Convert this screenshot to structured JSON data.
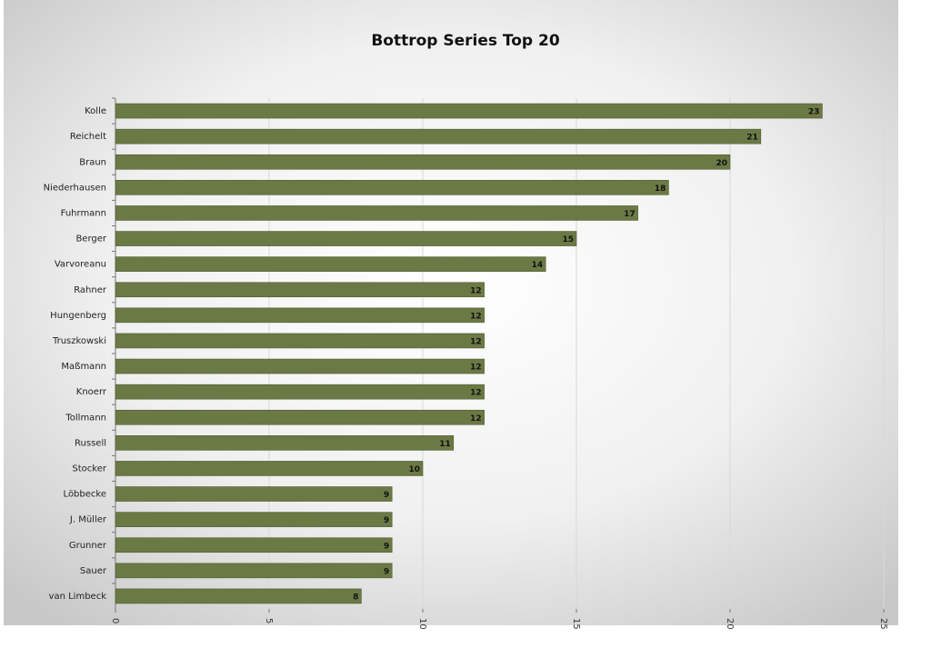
{
  "chart_data": {
    "type": "bar",
    "orientation": "horizontal",
    "title": "Bottrop Series Top 20",
    "categories": [
      "Kolle",
      "Reichelt",
      "Braun",
      "Niederhausen",
      "Fuhrmann",
      "Berger",
      "Varvoreanu",
      "Rahner",
      "Hungenberg",
      "Truszkowski",
      "Maßmann",
      "Knoerr",
      "Tollmann",
      "Russell",
      "Stocker",
      "Löbbecke",
      "J. Müller",
      "Grunner",
      "Sauer",
      "van Limbeck"
    ],
    "values": [
      23,
      21,
      20,
      18,
      17,
      15,
      14,
      12,
      12,
      12,
      12,
      12,
      12,
      11,
      10,
      9,
      9,
      9,
      9,
      8
    ],
    "color": "#6b7a45",
    "xlim": [
      0,
      25
    ],
    "xticks": [
      0,
      5,
      10,
      15,
      20,
      25
    ],
    "grid": true
  }
}
